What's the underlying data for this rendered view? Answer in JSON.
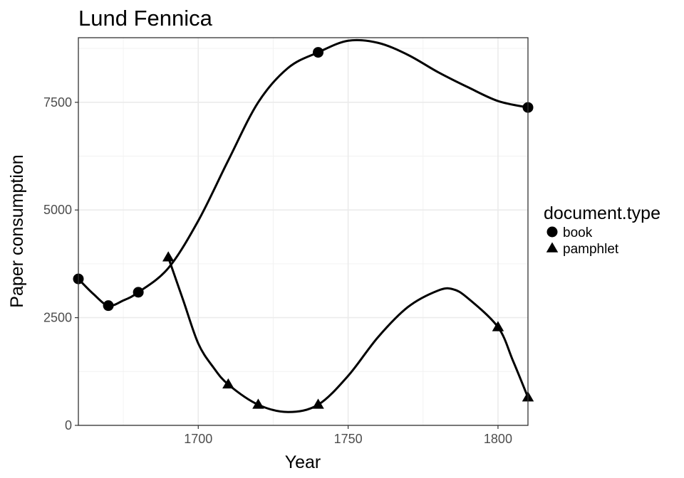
{
  "chart_data": {
    "type": "scatter",
    "title": "Lund Fennica",
    "xlabel": "Year",
    "ylabel": "Paper consumption",
    "xlim": [
      1660,
      1810
    ],
    "ylim": [
      0,
      9000
    ],
    "xticks": [
      1700,
      1750,
      1800
    ],
    "yticks": [
      0,
      2500,
      5000,
      7500
    ],
    "grid": true,
    "smooth": true,
    "legend": {
      "title": "document.type",
      "position": "right"
    },
    "series": [
      {
        "name": "book",
        "shape": "circle",
        "x": [
          1660,
          1670,
          1680,
          1740,
          1810
        ],
        "y": [
          3400,
          2780,
          3090,
          8660,
          7380
        ],
        "curve": [
          [
            1660,
            3400
          ],
          [
            1665,
            3050
          ],
          [
            1670,
            2780
          ],
          [
            1675,
            2900
          ],
          [
            1680,
            3090
          ],
          [
            1690,
            3650
          ],
          [
            1700,
            4750
          ],
          [
            1710,
            6150
          ],
          [
            1720,
            7500
          ],
          [
            1730,
            8300
          ],
          [
            1740,
            8660
          ],
          [
            1750,
            8930
          ],
          [
            1760,
            8880
          ],
          [
            1770,
            8600
          ],
          [
            1780,
            8200
          ],
          [
            1790,
            7850
          ],
          [
            1800,
            7530
          ],
          [
            1810,
            7380
          ]
        ]
      },
      {
        "name": "pamphlet",
        "shape": "triangle",
        "x": [
          1690,
          1710,
          1720,
          1740,
          1800,
          1810
        ],
        "y": [
          3900,
          950,
          480,
          480,
          2280,
          650
        ],
        "curve": [
          [
            1690,
            3900
          ],
          [
            1695,
            2900
          ],
          [
            1700,
            1900
          ],
          [
            1705,
            1350
          ],
          [
            1710,
            950
          ],
          [
            1720,
            480
          ],
          [
            1730,
            310
          ],
          [
            1740,
            480
          ],
          [
            1750,
            1150
          ],
          [
            1760,
            2050
          ],
          [
            1770,
            2750
          ],
          [
            1780,
            3130
          ],
          [
            1785,
            3160
          ],
          [
            1790,
            2950
          ],
          [
            1800,
            2280
          ],
          [
            1805,
            1500
          ],
          [
            1810,
            650
          ]
        ]
      }
    ]
  }
}
